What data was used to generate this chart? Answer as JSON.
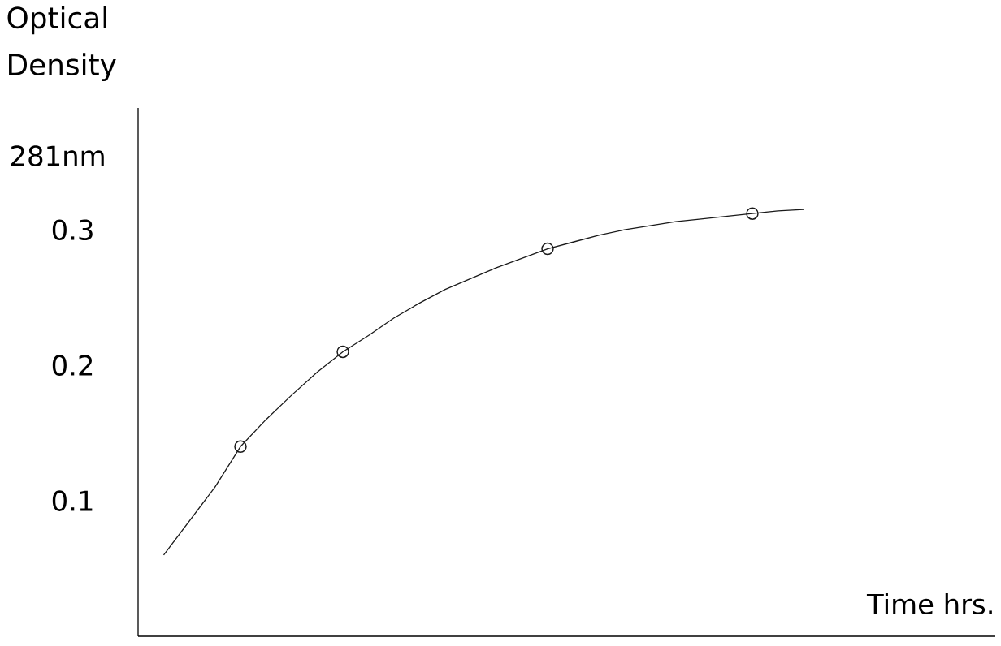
{
  "chart_data": {
    "type": "line",
    "ylabel": "Optical Density",
    "xlabel": "Time hrs.",
    "annotations": [
      "281nm"
    ],
    "categories": [
      null,
      null,
      null,
      null,
      null,
      null,
      null,
      null,
      null,
      null,
      null,
      null,
      null,
      null,
      null,
      null,
      null,
      null,
      null,
      null,
      null,
      null,
      null,
      null,
      null,
      null,
      null,
      null,
      null,
      null,
      null,
      null,
      null,
      null
    ],
    "series": [
      {
        "color": "#1a1a1a",
        "values": [
          null,
          0.06,
          0.085,
          0.11,
          0.14,
          0.16,
          0.178,
          0.195,
          0.21,
          0.222,
          0.235,
          0.246,
          0.256,
          0.264,
          0.272,
          0.279,
          0.286,
          0.291,
          0.296,
          0.3,
          0.303,
          0.306,
          0.308,
          0.31,
          0.312,
          0.314,
          0.315,
          null,
          null,
          null,
          null,
          null,
          null,
          null
        ]
      },
      {
        "type": "scatter",
        "color": "#1a1a1a",
        "marker": "circle",
        "values": [
          null,
          null,
          null,
          null,
          0.14,
          null,
          null,
          null,
          0.21,
          null,
          null,
          null,
          null,
          null,
          null,
          null,
          0.286,
          null,
          null,
          null,
          null,
          null,
          null,
          null,
          0.312,
          null,
          null,
          null,
          null,
          null,
          null,
          null,
          null,
          null
        ]
      }
    ],
    "ylim": [
      0,
      0.39
    ],
    "yticks": [
      0.1,
      0.2,
      0.3
    ]
  }
}
